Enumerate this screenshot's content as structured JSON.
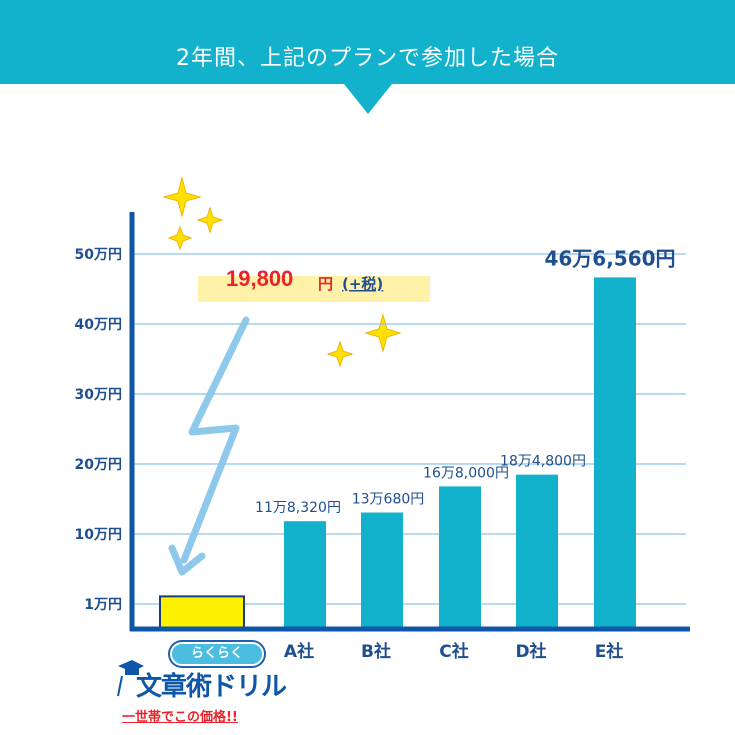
{
  "banner": {
    "title": "2年間、上記のプランで参加した場合",
    "color": "#13b2cc"
  },
  "highlight": {
    "price": "19,800",
    "unit": "円",
    "tax": "(+税)",
    "price_color": "#e8232b",
    "band_color": "#fff2a8"
  },
  "logo": {
    "pill": "らくらく",
    "name": "文章術ドリル",
    "note": "一世帯でこの価格!!"
  },
  "chart_data": {
    "type": "bar",
    "categories": [
      "",
      "A社",
      "B社",
      "C社",
      "D社",
      "E社"
    ],
    "values": [
      19800,
      118320,
      130680,
      168000,
      184800,
      466560
    ],
    "value_labels": [
      "",
      "11万8,320円",
      "13万680円",
      "16万8,000円",
      "18万4,800円",
      "46万6,560円"
    ],
    "y_ticks": [
      {
        "value": 10000,
        "label": "1万円"
      },
      {
        "value": 100000,
        "label": "10万円"
      },
      {
        "value": 200000,
        "label": "20万円"
      },
      {
        "value": 300000,
        "label": "30万円"
      },
      {
        "value": 400000,
        "label": "40万円"
      },
      {
        "value": 500000,
        "label": "50万円"
      }
    ],
    "ylim": [
      0,
      500000
    ],
    "grid": true,
    "colors": {
      "bar": "#13b2cc",
      "highlight_bar": "#fff200",
      "axis": "#0d56a8",
      "grid": "#8ec4e6",
      "label": "#1f4f8f"
    }
  }
}
